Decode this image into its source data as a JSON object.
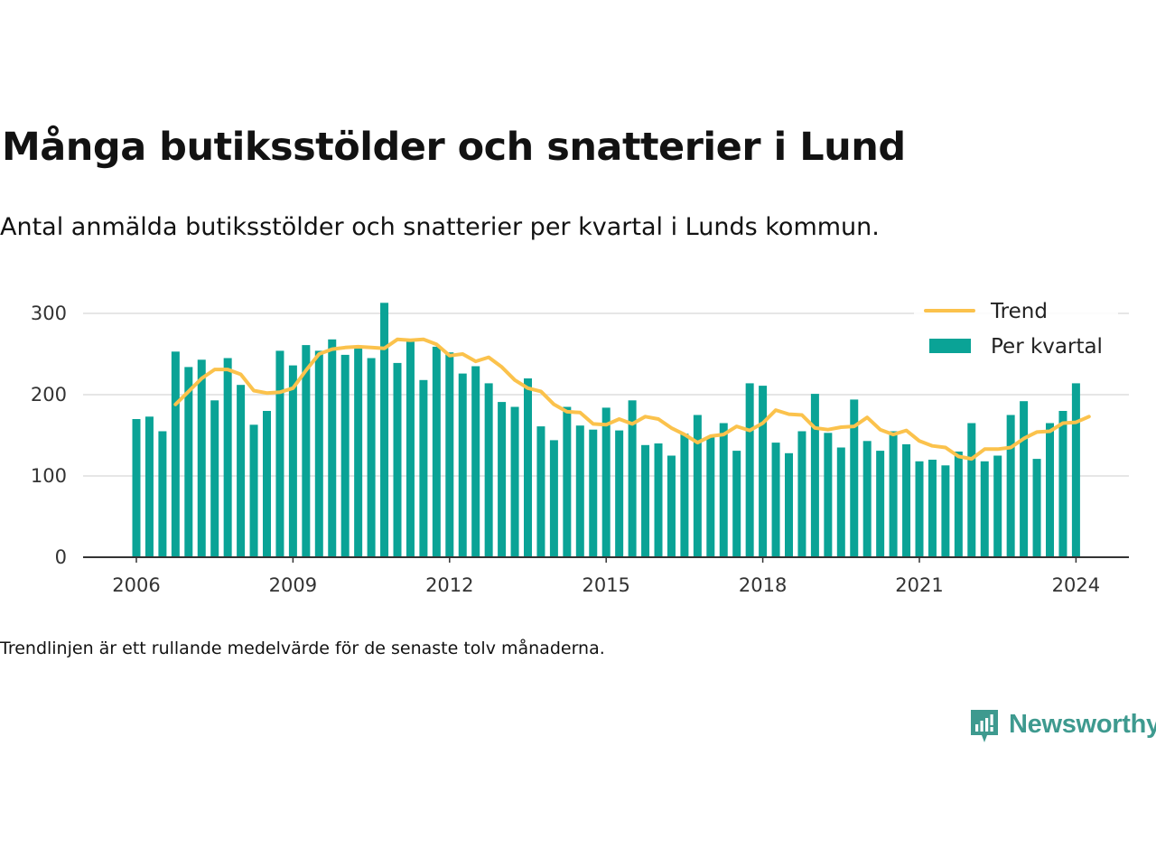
{
  "title": "Många butiksstölder och snatterier i Lund",
  "subtitle": "Antal anmälda butiksstölder och snatterier per kvartal i Lunds kommun.",
  "footnote": "Trendlinjen är ett rullande medelvärde för de senaste tolv månaderna.",
  "brand": {
    "name": "Newsworthy",
    "icon": "newsworthy-logo-icon",
    "color": "#3e9a8f"
  },
  "colors": {
    "bars": "#0aa396",
    "trend": "#fbc24c",
    "grid": "#dddddd",
    "axis": "#333333"
  },
  "chart_data": {
    "type": "bar",
    "x_unit": "quarter",
    "start": "2006 Q1",
    "x_ticks": [
      "2006",
      "2009",
      "2012",
      "2015",
      "2018",
      "2021",
      "2024"
    ],
    "y_ticks": [
      0,
      100,
      200,
      300
    ],
    "ylim": [
      0,
      330
    ],
    "grid": true,
    "legend_position": "top-right",
    "series": [
      {
        "name": "Per kvartal",
        "type": "bar",
        "values": [
          170,
          173,
          155,
          253,
          234,
          243,
          193,
          245,
          212,
          163,
          180,
          254,
          236,
          261,
          254,
          268,
          249,
          258,
          245,
          313,
          239,
          265,
          218,
          259,
          252,
          226,
          235,
          214,
          191,
          185,
          220,
          161,
          144,
          185,
          162,
          157,
          184,
          156,
          193,
          138,
          140,
          125,
          152,
          175,
          148,
          165,
          131,
          214,
          211,
          141,
          128,
          155,
          201,
          153,
          135,
          194,
          143,
          131,
          155,
          139,
          118,
          120,
          113,
          130,
          165,
          118,
          125,
          175,
          192,
          121,
          165,
          180,
          214
        ]
      },
      {
        "name": "Trend",
        "type": "line",
        "start_index": 3,
        "values": [
          188,
          204,
          220,
          231,
          231,
          225,
          205,
          202,
          203,
          208,
          230,
          250,
          256,
          258,
          259,
          258,
          257,
          268,
          267,
          268,
          262,
          248,
          250,
          241,
          246,
          234,
          218,
          208,
          204,
          188,
          179,
          178,
          164,
          163,
          170,
          164,
          173,
          170,
          159,
          151,
          141,
          149,
          151,
          161,
          156,
          165,
          181,
          176,
          175,
          159,
          157,
          160,
          161,
          172,
          157,
          151,
          156,
          143,
          137,
          135,
          124,
          121,
          133,
          133,
          135,
          146,
          154,
          155,
          165,
          166,
          173
        ]
      }
    ]
  }
}
